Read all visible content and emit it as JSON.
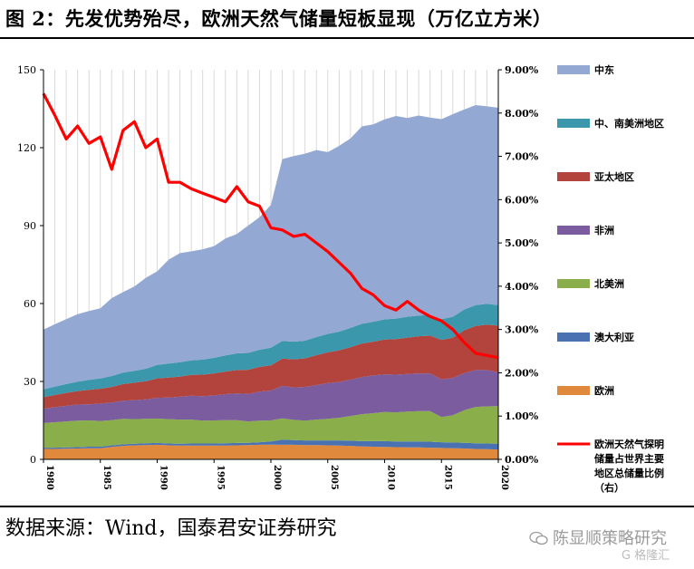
{
  "figure": {
    "title": "图 2：先发优势殆尽，欧洲天然气储量短板显现（万亿立方米）",
    "source": "数据来源：Wind，国泰君安证券研究",
    "watermark": "陈显顺策略研究",
    "logo": "G 格隆汇"
  },
  "colors": {
    "middle_east": "#93a9d4",
    "central_south_america": "#3b97ab",
    "asia_pacific": "#b2443d",
    "africa": "#7a5c9f",
    "north_america": "#8aaf4a",
    "australia": "#4a72b3",
    "europe": "#e0893d",
    "europe_share_line": "#ff0000",
    "grid": "#d9d9d9"
  },
  "chart_data": {
    "type": "area",
    "x": [
      1980,
      1981,
      1982,
      1983,
      1984,
      1985,
      1986,
      1987,
      1988,
      1989,
      1990,
      1991,
      1992,
      1993,
      1994,
      1995,
      1996,
      1997,
      1998,
      1999,
      2000,
      2001,
      2002,
      2003,
      2004,
      2005,
      2006,
      2007,
      2008,
      2009,
      2010,
      2011,
      2012,
      2013,
      2014,
      2015,
      2016,
      2017,
      2018,
      2019,
      2020
    ],
    "x_ticks": [
      1980,
      1985,
      1990,
      1995,
      2000,
      2005,
      2010,
      2015,
      2020
    ],
    "ylim_left": [
      0,
      150
    ],
    "yticks_left": [
      0,
      30,
      60,
      90,
      120,
      150
    ],
    "ylim_right": [
      0,
      9
    ],
    "yticks_right": [
      "0.00%",
      "1.00%",
      "2.00%",
      "3.00%",
      "4.00%",
      "5.00%",
      "6.00%",
      "7.00%",
      "8.00%",
      "9.00%"
    ],
    "grid": "vertical",
    "legend_position": "right",
    "series": [
      {
        "name": "欧洲",
        "key": "europe",
        "values": [
          4.0,
          4.0,
          4.1,
          4.2,
          4.3,
          4.3,
          4.8,
          5.2,
          5.4,
          5.5,
          5.6,
          5.4,
          5.3,
          5.3,
          5.3,
          5.3,
          5.3,
          5.4,
          5.5,
          5.6,
          5.7,
          5.6,
          5.6,
          5.5,
          5.5,
          5.4,
          5.3,
          5.2,
          5.0,
          4.9,
          4.8,
          4.7,
          4.6,
          4.6,
          4.5,
          4.4,
          4.3,
          4.2,
          4.0,
          3.9,
          3.8
        ]
      },
      {
        "name": "澳大利亚",
        "key": "australia",
        "values": [
          0.5,
          0.5,
          0.5,
          0.5,
          0.6,
          0.6,
          0.6,
          0.6,
          0.6,
          0.7,
          0.7,
          0.7,
          0.7,
          0.8,
          0.8,
          0.8,
          0.9,
          0.9,
          0.9,
          1.0,
          1.2,
          2.0,
          1.8,
          1.8,
          1.8,
          1.9,
          2.0,
          2.0,
          2.0,
          2.1,
          2.2,
          2.2,
          2.3,
          2.3,
          2.3,
          2.2,
          2.2,
          2.2,
          2.2,
          2.2,
          2.2
        ]
      },
      {
        "name": "北美洲",
        "key": "north_america",
        "values": [
          9.5,
          9.8,
          10.0,
          10.2,
          10.1,
          9.9,
          9.7,
          9.8,
          9.5,
          9.4,
          9.4,
          9.4,
          9.3,
          9.2,
          8.8,
          8.9,
          8.9,
          8.8,
          8.2,
          8.3,
          8.1,
          8.2,
          7.8,
          7.6,
          8.0,
          8.3,
          8.7,
          9.5,
          10.4,
          10.8,
          11.2,
          11.2,
          11.5,
          11.7,
          11.8,
          9.7,
          10.5,
          12.5,
          14.0,
          14.3,
          14.5
        ]
      },
      {
        "name": "非洲",
        "key": "africa",
        "values": [
          5.5,
          5.8,
          6.0,
          6.2,
          6.2,
          6.7,
          6.8,
          7.0,
          7.3,
          7.5,
          8.0,
          8.3,
          8.8,
          9.2,
          9.4,
          9.6,
          10.0,
          10.3,
          10.6,
          11.2,
          11.5,
          12.5,
          12.5,
          13.0,
          13.3,
          13.8,
          13.8,
          14.0,
          14.3,
          14.5,
          14.5,
          14.5,
          14.5,
          14.5,
          14.5,
          14.5,
          14.4,
          14.3,
          14.2,
          14.0,
          13.0
        ]
      },
      {
        "name": "亚太地区",
        "key": "asia_pacific",
        "values": [
          4.5,
          4.7,
          5.0,
          5.2,
          5.6,
          5.7,
          6.0,
          6.4,
          6.7,
          7.0,
          7.5,
          7.7,
          7.8,
          8.0,
          8.3,
          8.5,
          8.7,
          9.0,
          9.3,
          9.5,
          9.7,
          10.5,
          10.8,
          11.0,
          11.5,
          11.8,
          12.2,
          12.5,
          12.9,
          13.0,
          13.4,
          13.7,
          14.0,
          14.3,
          14.5,
          15.2,
          15.5,
          16.5,
          17.0,
          17.5,
          18.0
        ]
      },
      {
        "name": "中、南美洲地区",
        "key": "central_south_america",
        "values": [
          3.0,
          3.2,
          3.4,
          3.6,
          3.8,
          4.0,
          4.2,
          4.4,
          4.6,
          4.8,
          5.2,
          5.4,
          5.5,
          5.6,
          5.8,
          6.0,
          6.2,
          6.4,
          6.5,
          6.6,
          6.8,
          6.8,
          6.8,
          6.8,
          7.0,
          7.1,
          7.2,
          7.4,
          7.6,
          7.7,
          7.8,
          7.9,
          8.0,
          8.0,
          8.0,
          8.0,
          8.0,
          8.0,
          8.0,
          8.0,
          7.9
        ]
      },
      {
        "name": "中东",
        "key": "middle_east",
        "values": [
          23.0,
          24.0,
          25.0,
          26.0,
          26.5,
          27.0,
          30.0,
          31.0,
          32.5,
          35.0,
          36.0,
          40.0,
          42.0,
          42.0,
          42.5,
          43.0,
          45.0,
          46.0,
          49.0,
          51.0,
          55.0,
          70.0,
          71.5,
          72.0,
          72.0,
          70.0,
          71.5,
          73.0,
          76.0,
          76.0,
          77.0,
          78.0,
          76.5,
          77.0,
          76.0,
          77.0,
          78.0,
          77.0,
          77.0,
          76.0,
          76.0
        ]
      }
    ],
    "line_series": {
      "name": "欧洲天然气探明储量占世界主要地区总储量比例（右）",
      "key": "europe_share_line",
      "axis": "right",
      "values": [
        8.45,
        7.95,
        7.4,
        7.7,
        7.3,
        7.45,
        6.7,
        7.6,
        7.8,
        7.2,
        7.4,
        6.4,
        6.4,
        6.25,
        6.15,
        6.05,
        5.95,
        6.3,
        5.95,
        5.85,
        5.35,
        5.3,
        5.15,
        5.2,
        5.0,
        4.8,
        4.55,
        4.3,
        3.95,
        3.8,
        3.55,
        3.45,
        3.65,
        3.45,
        3.3,
        3.2,
        3.0,
        2.7,
        2.45,
        2.4,
        2.35
      ]
    }
  },
  "legend": [
    {
      "key": "middle_east",
      "text": "中东"
    },
    {
      "key": "central_south_america",
      "text": "中、南美洲地区"
    },
    {
      "key": "asia_pacific",
      "text": "亚太地区"
    },
    {
      "key": "africa",
      "text": "非洲"
    },
    {
      "key": "north_america",
      "text": "北美洲"
    },
    {
      "key": "australia",
      "text": "澳大利亚"
    },
    {
      "key": "europe",
      "text": "欧洲"
    },
    {
      "key": "europe_share_line",
      "text": "欧洲天然气探明储量占世界主要地区总储量比例（右）"
    }
  ]
}
